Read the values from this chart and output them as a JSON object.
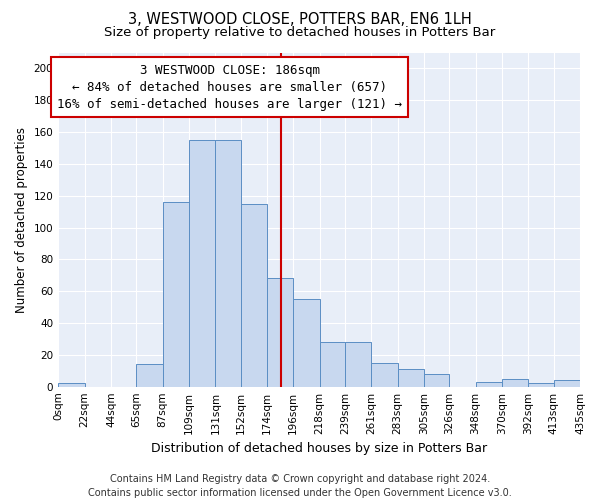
{
  "title": "3, WESTWOOD CLOSE, POTTERS BAR, EN6 1LH",
  "subtitle": "Size of property relative to detached houses in Potters Bar",
  "xlabel": "Distribution of detached houses by size in Potters Bar",
  "ylabel": "Number of detached properties",
  "bar_edges": [
    0,
    22,
    44,
    65,
    87,
    109,
    131,
    152,
    174,
    196,
    218,
    239,
    261,
    283,
    305,
    326,
    348,
    370,
    392,
    413,
    435
  ],
  "bar_heights": [
    2,
    0,
    0,
    14,
    116,
    155,
    155,
    115,
    68,
    55,
    28,
    28,
    15,
    11,
    8,
    0,
    3,
    5,
    2,
    4
  ],
  "bar_color": "#c8d8ef",
  "bar_edge_color": "#5b8ec4",
  "property_size": 186,
  "vline_color": "#cc0000",
  "annotation_line1": "3 WESTWOOD CLOSE: 186sqm",
  "annotation_line2": "← 84% of detached houses are smaller (657)",
  "annotation_line3": "16% of semi-detached houses are larger (121) →",
  "annotation_box_color": "#cc0000",
  "ylim": [
    0,
    210
  ],
  "yticks": [
    0,
    20,
    40,
    60,
    80,
    100,
    120,
    140,
    160,
    180,
    200
  ],
  "tick_labels": [
    "0sqm",
    "22sqm",
    "44sqm",
    "65sqm",
    "87sqm",
    "109sqm",
    "131sqm",
    "152sqm",
    "174sqm",
    "196sqm",
    "218sqm",
    "239sqm",
    "261sqm",
    "283sqm",
    "305sqm",
    "326sqm",
    "348sqm",
    "370sqm",
    "392sqm",
    "413sqm",
    "435sqm"
  ],
  "footer_text": "Contains HM Land Registry data © Crown copyright and database right 2024.\nContains public sector information licensed under the Open Government Licence v3.0.",
  "plot_bg_color": "#e8eef8",
  "fig_bg_color": "#ffffff",
  "grid_color": "#ffffff",
  "title_fontsize": 10.5,
  "subtitle_fontsize": 9.5,
  "xlabel_fontsize": 9,
  "ylabel_fontsize": 8.5,
  "tick_fontsize": 7.5,
  "annotation_fontsize": 9,
  "footer_fontsize": 7
}
